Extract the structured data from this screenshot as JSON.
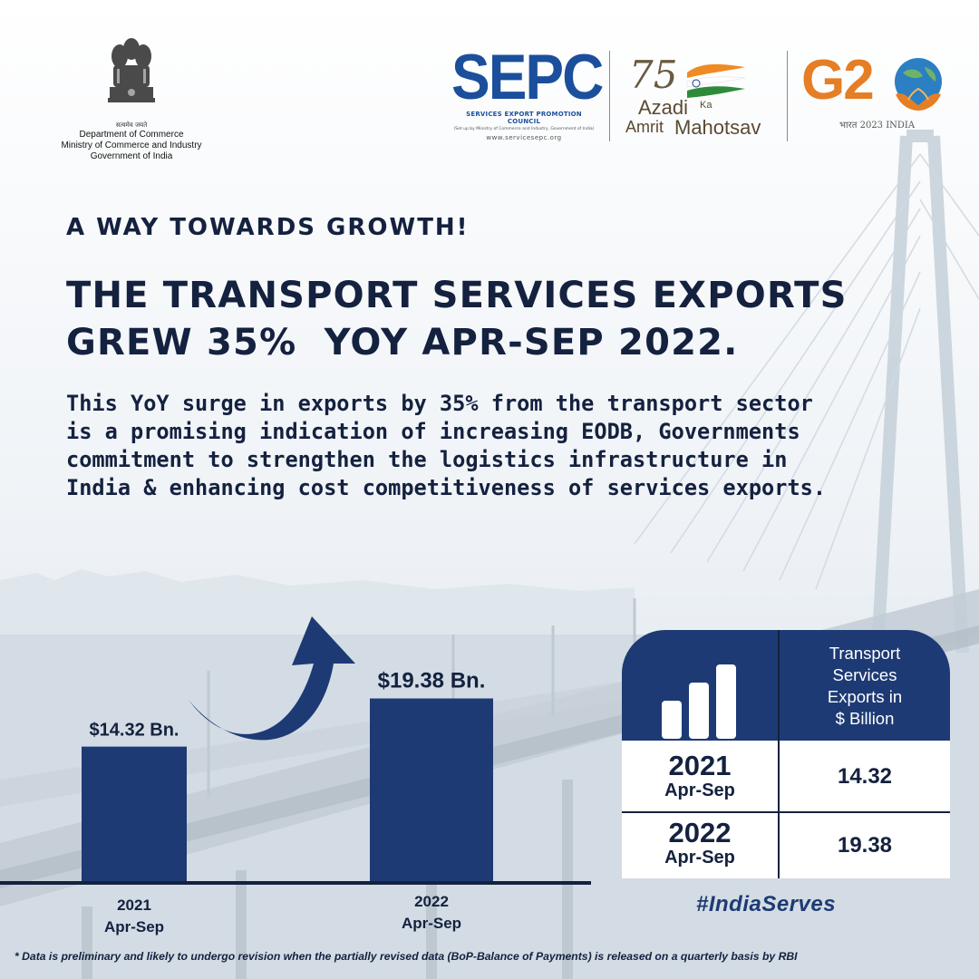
{
  "header": {
    "gov": {
      "motto": "सत्यमेव जयते",
      "lines": [
        "Department of Commerce",
        "Ministry of Commerce and Industry",
        "Government of India"
      ]
    },
    "sepc": {
      "wordmark": "SEPC",
      "full_name": "SERVICES EXPORT PROMOTION COUNCIL",
      "subline": "(Set up by Ministry of Commerce and Industry, Government of India)",
      "url": "www.servicesepc.org"
    },
    "akam": {
      "number": "75",
      "azadi": "Azadi",
      "ka": "Ka",
      "amrit": "Amrit",
      "mahotsav": "Mahotsav"
    },
    "g20": {
      "wordmark": "G2",
      "subtitle": "भारत 2023 INDIA"
    }
  },
  "kicker": "A WAY TOWARDS GROWTH!",
  "headline": [
    "THE TRANSPORT SERVICES EXPORTS",
    "GREW 35%  YOY APR-SEP 2022."
  ],
  "body_lines": [
    "This YoY surge in exports by 35% from the transport sector",
    "is a promising indication of increasing EODB, Governments",
    "commitment to strengthen the logistics infrastructure in",
    "India & enhancing cost competitiveness of services exports."
  ],
  "chart_data": {
    "type": "bar",
    "categories": [
      [
        "2021",
        "Apr-Sep"
      ],
      [
        "2022",
        "Apr-Sep"
      ]
    ],
    "values": [
      14.32,
      19.38
    ],
    "data_labels": [
      "$14.32 Bn.",
      "$19.38 Bn."
    ],
    "ylim": [
      0,
      24
    ],
    "bar_color": "#1d3a74",
    "grid": false
  },
  "table": {
    "column_header": [
      "Transport",
      "Services",
      "Exports in",
      "$ Billion"
    ],
    "rows": [
      {
        "year": "2021",
        "period": "Apr-Sep",
        "value": "14.32"
      },
      {
        "year": "2022",
        "period": "Apr-Sep",
        "value": "19.38"
      }
    ]
  },
  "hashtag": "#IndiaServes",
  "footnote": "* Data is preliminary and likely to undergo revision when the partially revised data (BoP-Balance of Payments) is released on a quarterly basis by RBI",
  "colors": {
    "navy": "#1d3a74",
    "text": "#14213f",
    "sepc_blue": "#1b4f9c",
    "g20_orange": "#e57e25"
  }
}
